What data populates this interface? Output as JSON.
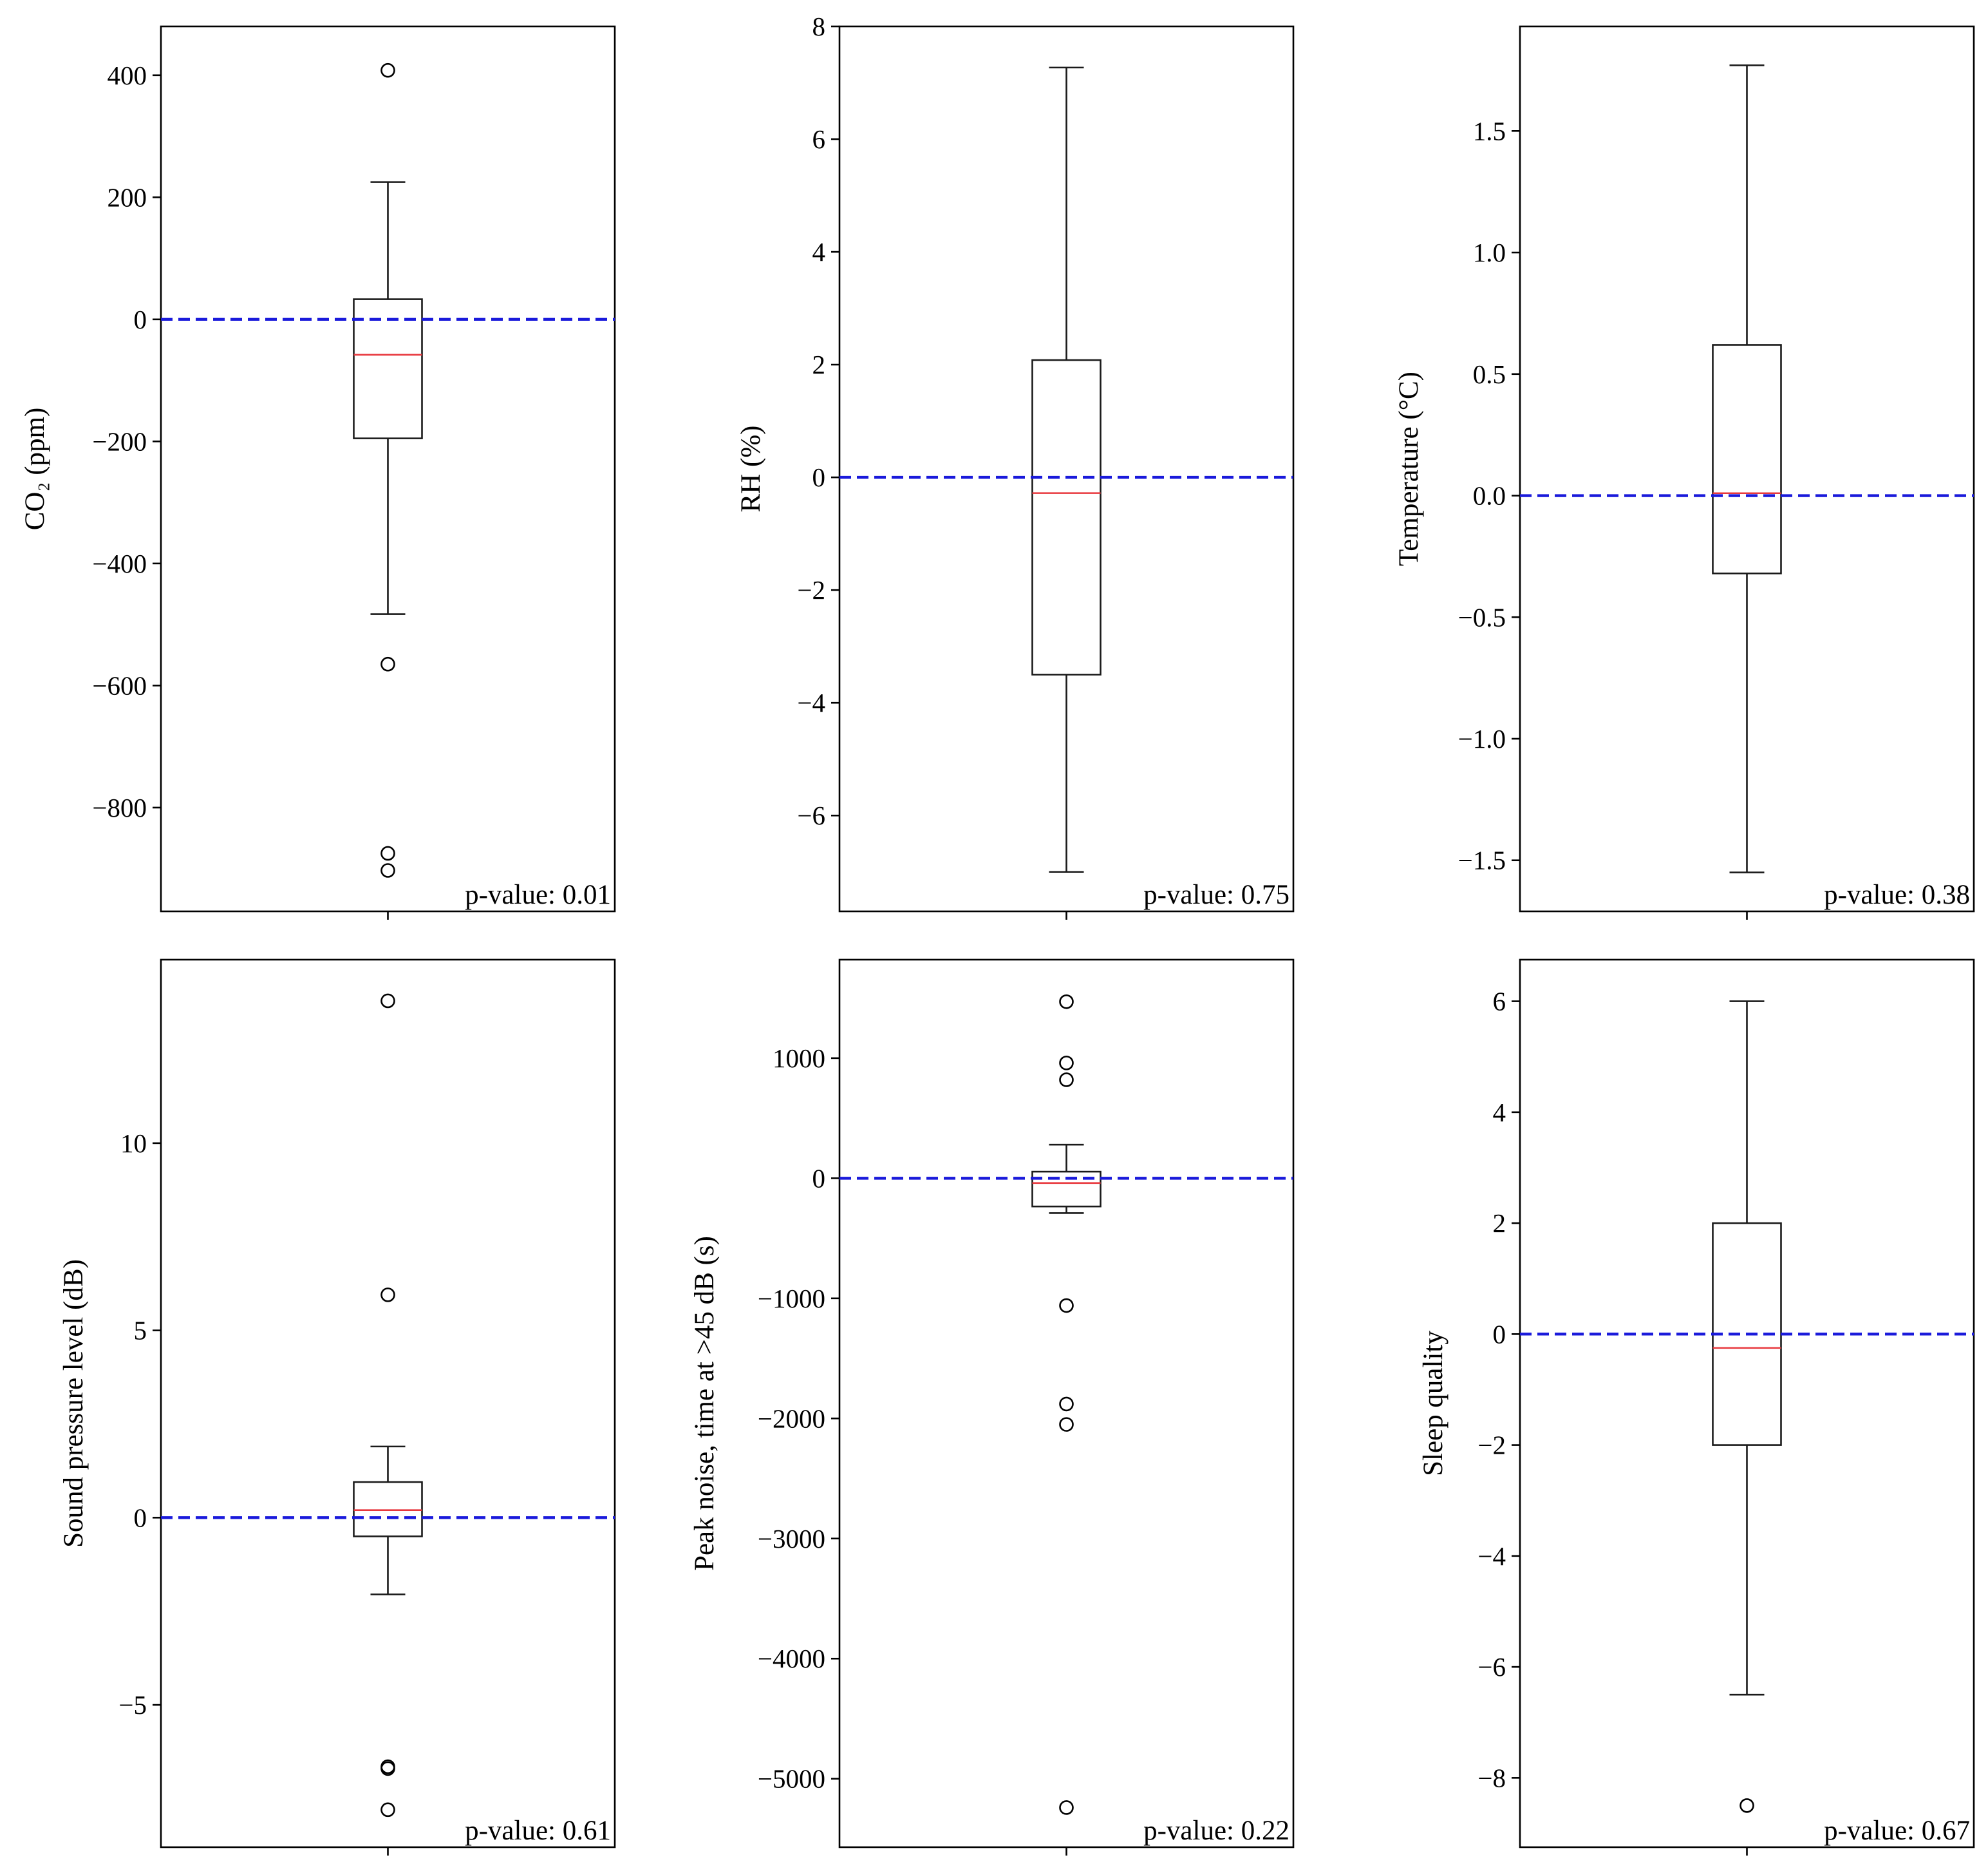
{
  "chart_data": [
    {
      "type": "box",
      "ylabel": "CO₂ (ppm)",
      "ylim": [
        -970,
        480
      ],
      "yticks": [
        400,
        200,
        0,
        -200,
        -400,
        -600,
        -800
      ],
      "tick_labels": [
        "400",
        "200",
        "0",
        "−200",
        "−400",
        "−600",
        "−800"
      ],
      "box": {
        "whisker_high": 225,
        "q3": 33,
        "median": -58,
        "q1": -195,
        "whisker_low": -483
      },
      "outliers": [
        408,
        -565,
        -875,
        -903
      ],
      "reference_line": 0,
      "annotation": "p-value: 0.01"
    },
    {
      "type": "box",
      "ylabel": "RH (%)",
      "ylim": [
        -7.7,
        8.0
      ],
      "yticks": [
        8,
        6,
        4,
        2,
        0,
        -2,
        -4,
        -6
      ],
      "tick_labels": [
        "8",
        "6",
        "4",
        "2",
        "0",
        "−2",
        "−4",
        "−6"
      ],
      "box": {
        "whisker_high": 7.27,
        "q3": 2.08,
        "median": -0.28,
        "q1": -3.5,
        "whisker_low": -7.0
      },
      "outliers": [],
      "reference_line": 0,
      "annotation": "p-value: 0.75"
    },
    {
      "type": "box",
      "ylabel": "Temperature (°C)",
      "ylim": [
        -1.71,
        1.93
      ],
      "yticks": [
        1.5,
        1.0,
        0.5,
        0.0,
        -0.5,
        -1.0,
        -1.5
      ],
      "tick_labels": [
        "1.5",
        "1.0",
        "0.5",
        "0.0",
        "−0.5",
        "−1.0",
        "−1.5"
      ],
      "box": {
        "whisker_high": 1.77,
        "q3": 0.62,
        "median": 0.01,
        "q1": -0.32,
        "whisker_low": -1.55
      },
      "outliers": [],
      "reference_line": 0,
      "annotation": "p-value: 0.38"
    },
    {
      "type": "box",
      "ylabel": "Sound pressure level (dB)",
      "ylim": [
        -8.8,
        14.9
      ],
      "yticks": [
        10,
        5,
        0,
        -5
      ],
      "tick_labels": [
        "10",
        "5",
        "0",
        "−5"
      ],
      "box": {
        "whisker_high": 1.9,
        "q3": 0.95,
        "median": 0.2,
        "q1": -0.5,
        "whisker_low": -2.05
      },
      "outliers": [
        13.8,
        5.95,
        -6.65,
        -6.7,
        -7.8
      ],
      "reference_line": 0,
      "annotation": "p-value: 0.61"
    },
    {
      "type": "box",
      "ylabel": "Peak noise, time at >45 dB (s)",
      "ylim": [
        -5570,
        1820
      ],
      "yticks": [
        1000,
        0,
        -1000,
        -2000,
        -3000,
        -4000,
        -5000
      ],
      "tick_labels": [
        "1000",
        "0",
        "−1000",
        "−2000",
        "−3000",
        "−4000",
        "−5000"
      ],
      "box": {
        "whisker_high": 280,
        "q3": 55,
        "median": -40,
        "q1": -235,
        "whisker_low": -290
      },
      "outliers": [
        1470,
        960,
        820,
        -1060,
        -1880,
        -2050,
        -5240
      ],
      "reference_line": 0,
      "annotation": "p-value: 0.22"
    },
    {
      "type": "box",
      "ylabel": "Sleep quality",
      "ylim": [
        -9.25,
        6.75
      ],
      "yticks": [
        6,
        4,
        2,
        0,
        -2,
        -4,
        -6,
        -8
      ],
      "tick_labels": [
        "6",
        "4",
        "2",
        "0",
        "−2",
        "−4",
        "−6",
        "−8"
      ],
      "box": {
        "whisker_high": 6.0,
        "q3": 2.0,
        "median": -0.25,
        "q1": -2.0,
        "whisker_low": -6.5
      },
      "outliers": [
        -8.5
      ],
      "reference_line": 0,
      "annotation": "p-value: 0.67"
    }
  ],
  "colors": {
    "median": "#e8383d",
    "reference_line": "#1a1adb",
    "box": "#1a1a1a"
  }
}
